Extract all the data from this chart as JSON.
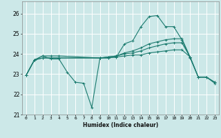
{
  "xlabel": "Humidex (Indice chaleur)",
  "bg_color": "#cce8e8",
  "grid_color": "#ffffff",
  "line_color": "#1a7a6e",
  "xlim": [
    -0.5,
    23.5
  ],
  "ylim": [
    21,
    26.6
  ],
  "yticks": [
    21,
    22,
    23,
    24,
    25,
    26
  ],
  "xticks": [
    0,
    1,
    2,
    3,
    4,
    5,
    6,
    7,
    8,
    9,
    10,
    11,
    12,
    13,
    14,
    15,
    16,
    17,
    18,
    19,
    20,
    21,
    22,
    23
  ],
  "line1_x": [
    0,
    1,
    2,
    3,
    4,
    5,
    6,
    7,
    8,
    9,
    10,
    11,
    12,
    13,
    14,
    15,
    16,
    17,
    18,
    19,
    20,
    21,
    22,
    23
  ],
  "line1_y": [
    22.95,
    23.7,
    23.9,
    23.75,
    23.75,
    23.1,
    22.6,
    22.55,
    21.35,
    23.8,
    23.8,
    23.85,
    24.5,
    24.65,
    25.35,
    25.85,
    25.9,
    25.35,
    25.35,
    24.7,
    23.8,
    22.85,
    22.85,
    22.55
  ],
  "line2_x": [
    0,
    1,
    2,
    3,
    4,
    9,
    10,
    11,
    12,
    13,
    14,
    15,
    16,
    17,
    18,
    19,
    20,
    21,
    22,
    23
  ],
  "line2_y": [
    22.95,
    23.7,
    23.9,
    23.9,
    23.9,
    23.8,
    23.85,
    23.9,
    24.05,
    24.15,
    24.3,
    24.5,
    24.6,
    24.7,
    24.75,
    24.75,
    23.85,
    22.85,
    22.85,
    22.6
  ],
  "line3_x": [
    0,
    1,
    2,
    3,
    4,
    9,
    10,
    11,
    12,
    13,
    14,
    15,
    16,
    17,
    18,
    19,
    20,
    21,
    22,
    23
  ],
  "line3_y": [
    22.95,
    23.7,
    23.8,
    23.8,
    23.8,
    23.8,
    23.85,
    23.9,
    24.0,
    24.05,
    24.15,
    24.3,
    24.4,
    24.5,
    24.55,
    24.55,
    23.85,
    22.85,
    22.85,
    22.6
  ],
  "line4_x": [
    0,
    1,
    2,
    3,
    4,
    9,
    10,
    11,
    12,
    13,
    14,
    15,
    16,
    17,
    18,
    19,
    20
  ],
  "line4_y": [
    22.95,
    23.7,
    23.8,
    23.8,
    23.8,
    23.8,
    23.8,
    23.85,
    23.9,
    23.95,
    23.95,
    24.05,
    24.1,
    24.15,
    24.2,
    24.2,
    23.85
  ]
}
